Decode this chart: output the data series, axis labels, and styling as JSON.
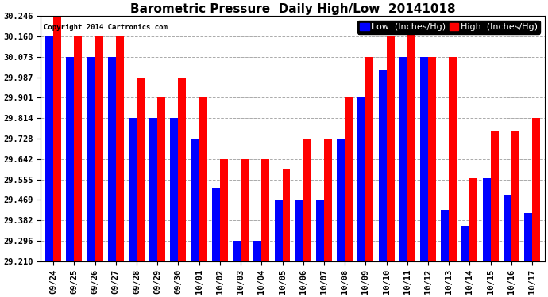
{
  "title": "Barometric Pressure  Daily High/Low  20141018",
  "copyright": "Copyright 2014 Cartronics.com",
  "legend_low": "Low  (Inches/Hg)",
  "legend_high": "High  (Inches/Hg)",
  "ylabel_ticks": [
    29.21,
    29.296,
    29.382,
    29.469,
    29.555,
    29.642,
    29.728,
    29.814,
    29.901,
    29.987,
    30.073,
    30.16,
    30.246
  ],
  "ylim": [
    29.21,
    30.246
  ],
  "dates": [
    "09/24",
    "09/25",
    "09/26",
    "09/27",
    "09/28",
    "09/29",
    "09/30",
    "10/01",
    "10/02",
    "10/03",
    "10/04",
    "10/05",
    "10/06",
    "10/07",
    "10/08",
    "10/09",
    "10/10",
    "10/11",
    "10/12",
    "10/13",
    "10/14",
    "10/15",
    "10/16",
    "10/17"
  ],
  "high_values": [
    30.246,
    30.16,
    30.16,
    30.16,
    29.987,
    29.901,
    29.987,
    29.901,
    29.642,
    29.642,
    29.642,
    29.6,
    29.728,
    29.728,
    29.901,
    30.073,
    30.16,
    30.21,
    30.073,
    30.073,
    29.56,
    29.76,
    29.76,
    29.814
  ],
  "low_values": [
    30.16,
    30.073,
    30.073,
    30.073,
    29.814,
    29.814,
    29.814,
    29.728,
    29.52,
    29.296,
    29.296,
    29.469,
    29.469,
    29.469,
    29.728,
    29.901,
    30.015,
    30.073,
    30.073,
    29.428,
    29.36,
    29.56,
    29.49,
    29.414
  ],
  "bar_width": 0.38,
  "low_color": "#0000ff",
  "high_color": "#ff0000",
  "bg_color": "#ffffff",
  "grid_color": "#aaaaaa",
  "title_fontsize": 11,
  "tick_fontsize": 7.5,
  "legend_fontsize": 8
}
